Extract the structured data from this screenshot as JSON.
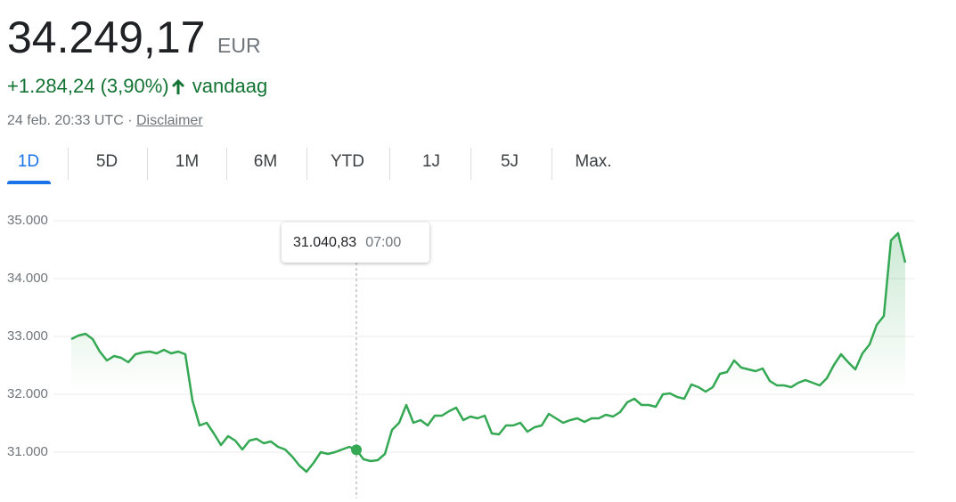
{
  "header": {
    "price": "34.249,17",
    "currency": "EUR",
    "change": "+1.284,24 (3,90%)",
    "period": "vandaag",
    "date": "24 feb. 20:33 UTC ·",
    "disclaimer": "Disclaimer"
  },
  "tabs": [
    "1D",
    "5D",
    "1M",
    "6M",
    "YTD",
    "1J",
    "5J",
    "Max."
  ],
  "tooltip": {
    "value": "31.040,83",
    "time": "07:00"
  },
  "chart_data": {
    "type": "line",
    "color": "#34a853",
    "grid": true,
    "ylim": [
      30200,
      35000
    ],
    "yticks": [
      {
        "value": 31000,
        "label": "31.000"
      },
      {
        "value": 32000,
        "label": "32.000"
      },
      {
        "value": 33000,
        "label": "33.000"
      },
      {
        "value": 34000,
        "label": "34.000"
      },
      {
        "value": 35000,
        "label": "35.000"
      }
    ],
    "values": [
      32954,
      33015,
      33046,
      32954,
      32738,
      32585,
      32662,
      32631,
      32554,
      32692,
      32723,
      32738,
      32708,
      32769,
      32708,
      32738,
      32692,
      31892,
      31462,
      31508,
      31323,
      31123,
      31277,
      31200,
      31046,
      31200,
      31231,
      31154,
      31185,
      31092,
      31046,
      30923,
      30769,
      30662,
      30815,
      31000,
      30969,
      31000,
      31046,
      31092,
      31040.83,
      30877,
      30846,
      30862,
      30969,
      31385,
      31508,
      31815,
      31508,
      31554,
      31462,
      31631,
      31631,
      31708,
      31769,
      31554,
      31615,
      31585,
      31631,
      31323,
      31308,
      31462,
      31462,
      31508,
      31354,
      31431,
      31462,
      31662,
      31585,
      31508,
      31554,
      31585,
      31523,
      31585,
      31585,
      31646,
      31615,
      31692,
      31862,
      31923,
      31815,
      31815,
      31785,
      32000,
      32015,
      31954,
      31923,
      32169,
      32123,
      32046,
      32123,
      32354,
      32385,
      32585,
      32462,
      32431,
      32400,
      32446,
      32231,
      32154,
      32154,
      32123,
      32200,
      32246,
      32200,
      32154,
      32277,
      32508,
      32692,
      32554,
      32431,
      32708,
      32862,
      33200,
      33354,
      34662,
      34785,
      34277
    ]
  }
}
